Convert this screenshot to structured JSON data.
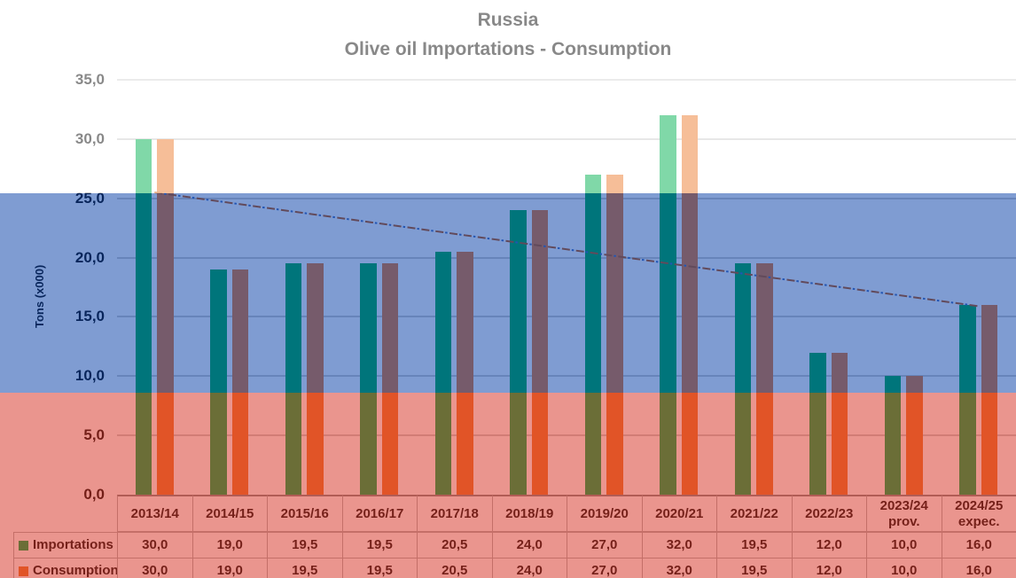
{
  "window": {
    "background": "#ffffff"
  },
  "chart_data": {
    "type": "bar",
    "title": "Russia",
    "subtitle": "Olive oil Importations - Consumption",
    "ylabel": "Tons (x000)",
    "ylim": [
      0,
      35
    ],
    "ytick_step": 5,
    "ytick_labels": [
      "0,0",
      "5,0",
      "10,0",
      "15,0",
      "20,0",
      "25,0",
      "30,0",
      "35,0"
    ],
    "grid": true,
    "legend_position": "table-left",
    "categories": [
      {
        "label": "2013/14",
        "sublabel": ""
      },
      {
        "label": "2014/15",
        "sublabel": ""
      },
      {
        "label": "2015/16",
        "sublabel": ""
      },
      {
        "label": "2016/17",
        "sublabel": ""
      },
      {
        "label": "2017/18",
        "sublabel": ""
      },
      {
        "label": "2018/19",
        "sublabel": ""
      },
      {
        "label": "2019/20",
        "sublabel": ""
      },
      {
        "label": "2020/21",
        "sublabel": ""
      },
      {
        "label": "2021/22",
        "sublabel": ""
      },
      {
        "label": "2022/23",
        "sublabel": ""
      },
      {
        "label": "2023/24",
        "sublabel": "prov."
      },
      {
        "label": "2024/25",
        "sublabel": "expec."
      }
    ],
    "series": [
      {
        "name": "Importations",
        "color": "#00B050",
        "values": [
          30.0,
          19.0,
          19.5,
          19.5,
          20.5,
          24.0,
          27.0,
          32.0,
          19.5,
          12.0,
          10.0,
          16.0
        ],
        "display": [
          "30,0",
          "19,0",
          "19,5",
          "19,5",
          "20,5",
          "24,0",
          "27,0",
          "32,0",
          "19,5",
          "12,0",
          "10,0",
          "16,0"
        ]
      },
      {
        "name": "Consumption",
        "color": "#ED7D31",
        "values": [
          30.0,
          19.0,
          19.5,
          19.5,
          20.5,
          24.0,
          27.0,
          32.0,
          19.5,
          12.0,
          10.0,
          16.0
        ],
        "display": [
          "30,0",
          "19,0",
          "19,5",
          "19,5",
          "20,5",
          "24,0",
          "27,0",
          "32,0",
          "19,5",
          "12,0",
          "10,0",
          "16,0"
        ]
      }
    ],
    "trendline": {
      "start_value": 25.5,
      "end_value": 15.9,
      "style": "dash-dot",
      "dash_color": "#C55A11",
      "dot_color": "#4472C4"
    }
  },
  "flag_overlay": {
    "name": "russian-flag-bands",
    "opacity": 0.5,
    "bands": [
      {
        "name": "white-band",
        "color": "#FFFFFF"
      },
      {
        "name": "blue-band",
        "color": "#0039A6"
      },
      {
        "name": "red-band",
        "color": "#D52B1E"
      }
    ]
  }
}
